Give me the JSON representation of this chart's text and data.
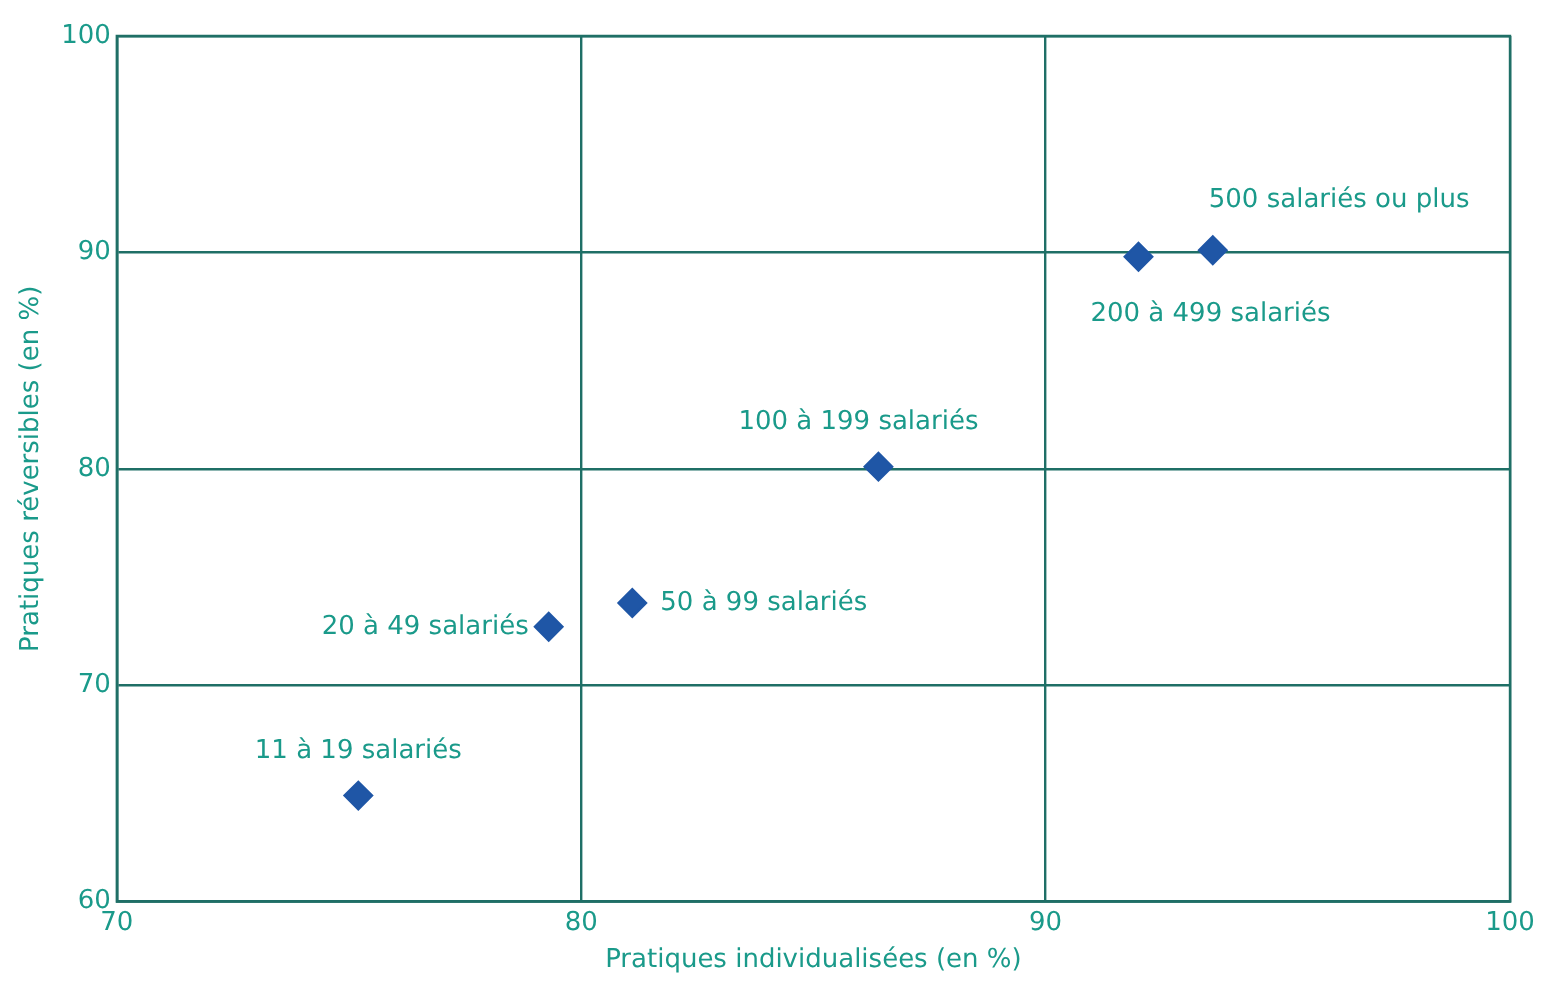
{
  "chart_data": {
    "type": "scatter",
    "xlabel": "Pratiques individualisées (en %)",
    "ylabel": "Pratiques réversibles (en %)",
    "x": [
      75.2,
      79.3,
      81.1,
      86.4,
      92.0,
      93.6
    ],
    "values": [
      64.9,
      72.7,
      73.8,
      80.1,
      89.8,
      90.1
    ],
    "color": "#1f56a6",
    "marker": "diamond",
    "grid": true,
    "legend": false,
    "xlim": [
      70,
      100
    ],
    "xticks": [
      70,
      80,
      90,
      100
    ],
    "ylim": [
      60,
      100
    ],
    "yticks": [
      60,
      70,
      80,
      90,
      100
    ],
    "annotations": [
      {
        "text": "11 à 19 salariés",
        "x": 75.2,
        "y": 64.9
      },
      {
        "text": "20 à 49 salariés",
        "x": 79.3,
        "y": 72.7
      },
      {
        "text": "50 à 99 salariés",
        "x": 81.1,
        "y": 73.8
      },
      {
        "text": "100 à 199 salariés",
        "x": 86.4,
        "y": 80.1
      },
      {
        "text": "200 à 499 salariés",
        "x": 92.0,
        "y": 89.8
      },
      {
        "text": "500 salariés ou plus",
        "x": 93.6,
        "y": 90.1
      }
    ]
  }
}
